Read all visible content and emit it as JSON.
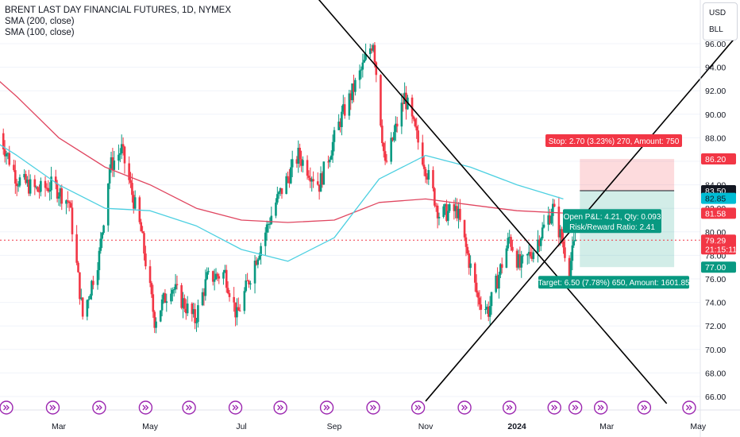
{
  "header": {
    "title": "BRENT LAST DAY FINANCIAL FUTURES, 1D, NYMEX",
    "sma200": "SMA (200, close)",
    "sma100": "SMA (100, close)",
    "currency": "USD",
    "unit": "BLL"
  },
  "chart_data": {
    "type": "candlestick",
    "x_ticks": [
      "Mar",
      "May",
      "Jul",
      "Sep",
      "Nov",
      "2024",
      "Mar",
      "May"
    ],
    "y_ticks": [
      "66.00",
      "68.00",
      "70.00",
      "72.00",
      "74.00",
      "76.00",
      "78.00",
      "80.00",
      "82.00",
      "84.00",
      "86.00",
      "88.00",
      "90.00",
      "92.00",
      "94.00",
      "96.00"
    ],
    "ylim": [
      65.5,
      97
    ],
    "approx_close_path": [
      {
        "date": "2023-01-20",
        "value": 88.4
      },
      {
        "date": "2023-02-01",
        "value": 84.5
      },
      {
        "date": "2023-02-15",
        "value": 83.5
      },
      {
        "date": "2023-02-25",
        "value": 84.0
      },
      {
        "date": "2023-03-08",
        "value": 82.5
      },
      {
        "date": "2023-03-17",
        "value": 72.8
      },
      {
        "date": "2023-03-28",
        "value": 78.0
      },
      {
        "date": "2023-04-04",
        "value": 85.5
      },
      {
        "date": "2023-04-12",
        "value": 87.0
      },
      {
        "date": "2023-04-25",
        "value": 80.0
      },
      {
        "date": "2023-05-04",
        "value": 72.5
      },
      {
        "date": "2023-05-15",
        "value": 75.5
      },
      {
        "date": "2023-05-31",
        "value": 72.5
      },
      {
        "date": "2023-06-08",
        "value": 76.0
      },
      {
        "date": "2023-06-20",
        "value": 76.5
      },
      {
        "date": "2023-06-28",
        "value": 72.8
      },
      {
        "date": "2023-07-10",
        "value": 77.5
      },
      {
        "date": "2023-07-24",
        "value": 82.5
      },
      {
        "date": "2023-08-08",
        "value": 86.5
      },
      {
        "date": "2023-08-22",
        "value": 84.0
      },
      {
        "date": "2023-09-05",
        "value": 89.5
      },
      {
        "date": "2023-09-20",
        "value": 94.0
      },
      {
        "date": "2023-09-27",
        "value": 96.3
      },
      {
        "date": "2023-10-05",
        "value": 85.5
      },
      {
        "date": "2023-10-18",
        "value": 91.5
      },
      {
        "date": "2023-11-01",
        "value": 85.5
      },
      {
        "date": "2023-11-10",
        "value": 81.5
      },
      {
        "date": "2023-11-22",
        "value": 81.8
      },
      {
        "date": "2023-12-06",
        "value": 74.3
      },
      {
        "date": "2023-12-13",
        "value": 73.3
      },
      {
        "date": "2023-12-27",
        "value": 79.5
      },
      {
        "date": "2024-01-03",
        "value": 77.0
      },
      {
        "date": "2024-01-12",
        "value": 78.5
      },
      {
        "date": "2024-01-25",
        "value": 82.0
      },
      {
        "date": "2024-02-01",
        "value": 78.8
      },
      {
        "date": "2024-02-05",
        "value": 77.0
      },
      {
        "date": "2024-02-09",
        "value": 79.3
      }
    ],
    "sma_100": [
      {
        "date": "2023-01-01",
        "value": 89.0
      },
      {
        "date": "2023-02-01",
        "value": 86.5
      },
      {
        "date": "2023-03-01",
        "value": 84.0
      },
      {
        "date": "2023-04-01",
        "value": 82.0
      },
      {
        "date": "2023-05-01",
        "value": 81.8
      },
      {
        "date": "2023-06-01",
        "value": 80.5
      },
      {
        "date": "2023-07-01",
        "value": 78.5
      },
      {
        "date": "2023-08-01",
        "value": 77.5
      },
      {
        "date": "2023-09-01",
        "value": 79.5
      },
      {
        "date": "2023-10-01",
        "value": 84.5
      },
      {
        "date": "2023-11-01",
        "value": 86.5
      },
      {
        "date": "2023-12-01",
        "value": 85.5
      },
      {
        "date": "2024-01-01",
        "value": 84.0
      },
      {
        "date": "2024-02-01",
        "value": 82.8
      }
    ],
    "sma_200": [
      {
        "date": "2023-01-01",
        "value": 95.0
      },
      {
        "date": "2023-02-01",
        "value": 91.5
      },
      {
        "date": "2023-03-01",
        "value": 88.0
      },
      {
        "date": "2023-04-01",
        "value": 85.5
      },
      {
        "date": "2023-05-01",
        "value": 84.0
      },
      {
        "date": "2023-06-01",
        "value": 82.0
      },
      {
        "date": "2023-07-01",
        "value": 81.0
      },
      {
        "date": "2023-08-01",
        "value": 80.8
      },
      {
        "date": "2023-09-01",
        "value": 81.0
      },
      {
        "date": "2023-10-01",
        "value": 82.5
      },
      {
        "date": "2023-11-01",
        "value": 82.8
      },
      {
        "date": "2023-12-01",
        "value": 82.3
      },
      {
        "date": "2024-01-01",
        "value": 81.8
      },
      {
        "date": "2024-02-01",
        "value": 81.6
      }
    ],
    "trendlines": [
      {
        "name": "descending",
        "from": {
          "date": "2023-08-20",
          "value": 100.0
        },
        "to": {
          "date": "2024-04-10",
          "value": 65.4
        }
      },
      {
        "name": "ascending",
        "from": {
          "date": "2023-11-01",
          "value": 65.6
        },
        "to": {
          "date": "2024-05-25",
          "value": 96.4
        }
      }
    ],
    "position": {
      "entry": 83.5,
      "stop": 86.2,
      "target": 77.0,
      "from_date": "2024-02-12",
      "to_date": "2024-04-15",
      "stop_label": "Stop: 2.70 (3.23%) 270, Amount: 750",
      "pnl_label": "Open P&L: 4.21, Qty: 0.093",
      "rr_label": "Risk/Reward Ratio: 2.41",
      "target_label": "Target: 6.50 (7.78%) 650, Amount: 1601.85"
    },
    "price_tags": [
      {
        "text": "86.20",
        "value": 86.2,
        "bg": "#f23645",
        "color": "#ffffff"
      },
      {
        "text": "83.50",
        "value": 83.5,
        "bg": "#131722",
        "color": "#ffffff"
      },
      {
        "text": "82.85",
        "value": 82.85,
        "bg": "#00bcd4",
        "color": "#131722"
      },
      {
        "text": "81.58",
        "value": 81.58,
        "bg": "#f23645",
        "color": "#ffffff"
      },
      {
        "text": "79.29",
        "value": 79.29,
        "bg": "#f23645",
        "color": "#ffffff"
      },
      {
        "text": "21:15:11",
        "value": 78.55,
        "bg": "#f23645",
        "color": "#ffffff"
      },
      {
        "text": "77.00",
        "value": 77.0,
        "bg": "#089981",
        "color": "#ffffff"
      }
    ],
    "current_price": 79.29,
    "colors": {
      "up": "#089981",
      "down": "#f23645",
      "sma100": "#4dd0e1",
      "sma200": "#e04660",
      "trend": "#000000",
      "stop_zone": "rgba(242,54,69,0.18)",
      "target_zone": "rgba(8,153,129,0.18)",
      "event_icon": "#9c27b0"
    },
    "event_icon_dates": [
      "2023-01-25",
      "2023-02-25",
      "2023-03-28",
      "2023-04-28",
      "2023-05-27",
      "2023-06-27",
      "2023-07-27",
      "2023-08-27",
      "2023-09-27",
      "2023-10-27",
      "2023-11-27",
      "2023-12-27",
      "2024-01-26",
      "2024-02-09",
      "2024-02-26",
      "2024-03-26",
      "2024-04-25"
    ]
  }
}
